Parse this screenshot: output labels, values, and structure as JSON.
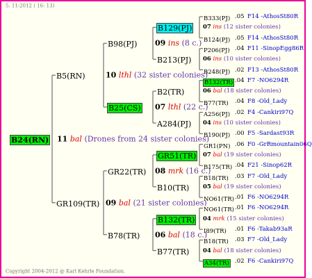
{
  "header": {
    "timestamp": "5. 11-2012 ( 16: 13)"
  },
  "footer": {
    "copyright": "Copyright 2004-2012 @ Karl Kehrle Foundation."
  },
  "root": {
    "name": "B24(RN)",
    "highlight": "#00ee00"
  },
  "drones": {
    "year": "11",
    "race": "bal",
    "note": "(Drones from 24 sister colonies)"
  },
  "gen1": [
    {
      "name": "B5(RN)",
      "year": "10",
      "race": "lthl",
      "note": "(32 sister colonies)"
    },
    {
      "name": "GR109(TR)",
      "year": "09",
      "race": "bal",
      "note": "(21 sister colonies)"
    }
  ],
  "gen2": [
    {
      "name": "B98(PJ)",
      "year": "09",
      "race": "ins",
      "note": "(8 c.)"
    },
    {
      "name": "B25(CS)",
      "highlight": "#00ee00",
      "year": "07",
      "race": "lthl",
      "note": "(22 c.)"
    },
    {
      "name": "GR22(TR)",
      "year": "08",
      "race": "mrk",
      "note": "(16 c.)"
    },
    {
      "name": "B78(TR)",
      "year": "06",
      "race": "bal",
      "note": "(18 c.)"
    }
  ],
  "gen3": [
    {
      "name": "B129(PJ)",
      "highlight": "#00eeee",
      "year": "07",
      "race": "ins",
      "note": "(12 sister colonies)"
    },
    {
      "name": "B213(PJ)",
      "year": "06",
      "race": "ins",
      "note": "(10 sister colonies)"
    },
    {
      "name": "B2(TR)",
      "year": "06",
      "race": "bal",
      "note": "(18 sister colonies)"
    },
    {
      "name": "A284(PJ)",
      "year": "04",
      "race": "ins",
      "note": "(10 sister colonies)"
    },
    {
      "name": "GR51(TR)",
      "highlight": "#00ee00",
      "year": "07",
      "race": "bal",
      "note": "(19 sister colonies)"
    },
    {
      "name": "B10(TR)",
      "year": "05",
      "race": "bal",
      "note": "(19 sister colonies)"
    },
    {
      "name": "B132(TR)",
      "highlight": "#00ee00",
      "year": "04",
      "race": "mrk",
      "note": "(15 sister colonies)"
    },
    {
      "name": "B77(TR)",
      "year": "04",
      "race": "bal",
      "note": "(18 sister colonies)"
    }
  ],
  "gen4": [
    {
      "name": "B333(PJ)",
      "value": ".05",
      "family": "F14 -AthosSt80R"
    },
    {
      "name": "B124(PJ)",
      "value": ".05",
      "family": "F14 -AthosSt80R"
    },
    {
      "name": "P206(PJ)",
      "value": ".04",
      "family": "F11 -SinopEgg86R"
    },
    {
      "name": "B248(PJ)",
      "value": ".02",
      "family": "F13 -AthosSt80R"
    },
    {
      "name": "B132(TR)",
      "value": ".04",
      "family": "F7 -NO6294R",
      "highlight": "#00ee00"
    },
    {
      "name": "B77(TR)",
      "value": ".04",
      "family": "F8 -Old_Lady"
    },
    {
      "name": "A256(PJ)",
      "value": ".02",
      "family": "F4 -Cankiri97Q"
    },
    {
      "name": "B190(PJ)",
      "value": ".00",
      "family": "F5 -Sardast93R"
    },
    {
      "name": "GR1(PN)",
      "value": ".06",
      "family": "F0 -GrRmountain06Q"
    },
    {
      "name": "B175(TR)",
      "value": ".04",
      "family": "F21 -Sinop62R"
    },
    {
      "name": "B18(TR)",
      "value": ".03",
      "family": "F7 -Old_Lady"
    },
    {
      "name": "NO61(TR)",
      "value": ".01",
      "family": "F6 -NO6294R"
    },
    {
      "name": "NO61(TR)",
      "value": ".01",
      "family": "F6 -NO6294R"
    },
    {
      "name": "I89(TR)",
      "value": ".01",
      "family": "F6 -Takab93aR"
    },
    {
      "name": "B18(TR)",
      "value": ".03",
      "family": "F7 -Old_Lady"
    },
    {
      "name": "A34(TR)",
      "value": ".02",
      "family": "F6 -Cankiri97Q",
      "highlight": "#00ee00"
    }
  ]
}
